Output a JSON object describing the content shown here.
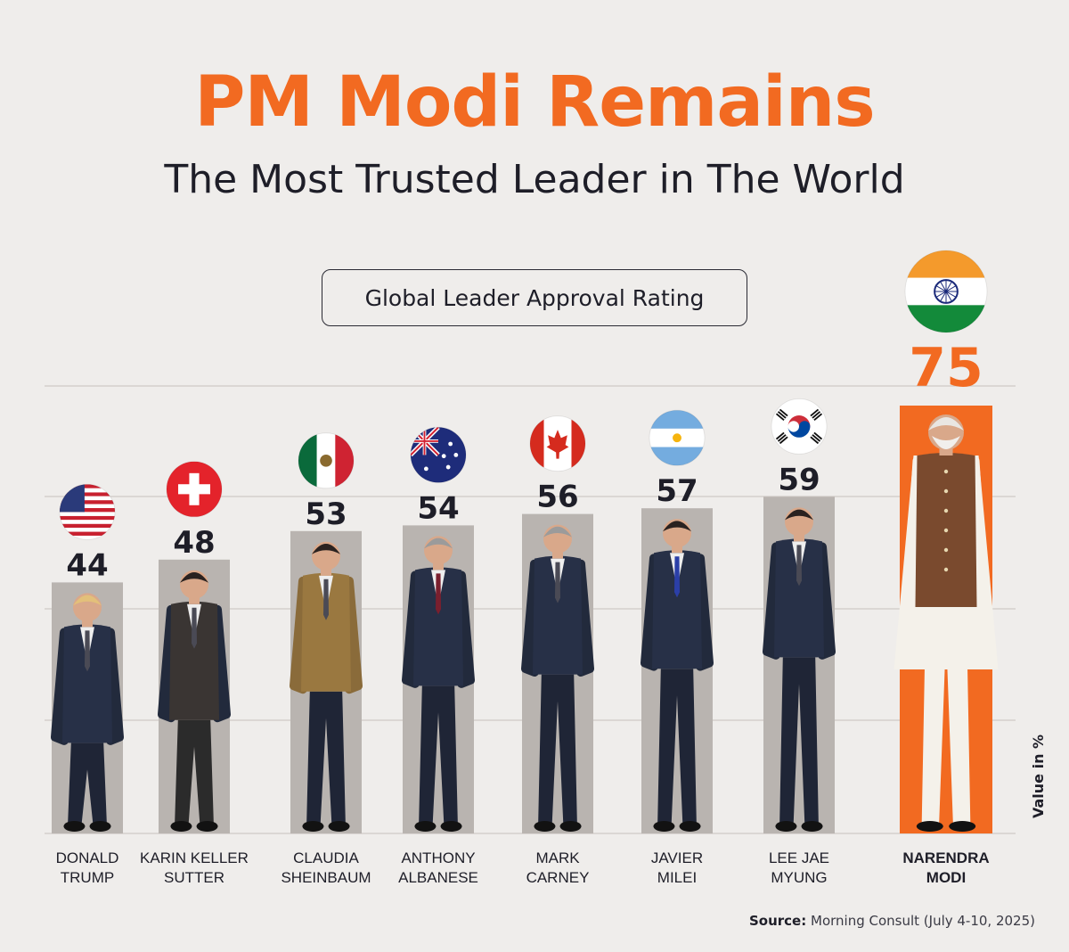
{
  "header": {
    "headline": "PM Modi Remains",
    "subtitle": "The Most Trusted Leader in The World"
  },
  "chart_data": {
    "type": "bar",
    "title": "Global Leader Approval Rating",
    "ylabel": "Value in %",
    "grid": true,
    "highlight_color": "#f26a21",
    "bar_color": "#b9b4b0",
    "categories": [
      [
        "DONALD",
        "TRUMP"
      ],
      [
        "KARIN KELLER",
        "SUTTER"
      ],
      [
        "CLAUDIA",
        "SHEINBAUM"
      ],
      [
        "ANTHONY",
        "ALBANESE"
      ],
      [
        "MARK",
        "CARNEY"
      ],
      [
        "JAVIER",
        "MILEI"
      ],
      [
        "LEE JAE",
        "MYUNG"
      ],
      [
        "NARENDRA",
        "MODI"
      ]
    ],
    "values": [
      44,
      48,
      53,
      54,
      56,
      57,
      59,
      75
    ],
    "flags": [
      "usa-flag-icon",
      "switzerland-flag-icon",
      "mexico-flag-icon",
      "australia-flag-icon",
      "canada-flag-icon",
      "argentina-flag-icon",
      "south-korea-flag-icon",
      "india-flag-icon"
    ],
    "highlighted_index": 7
  },
  "source": {
    "label": "Source:",
    "text": "Morning Consult (July 4-10, 2025)"
  }
}
